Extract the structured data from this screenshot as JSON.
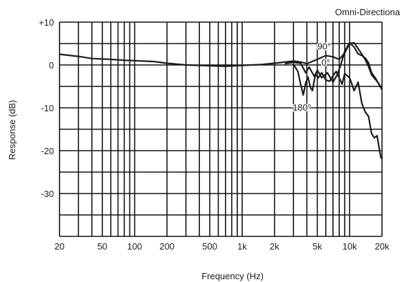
{
  "chart_data": {
    "type": "line",
    "title": "Omni-Directiona",
    "xlabel": "Frequency (Hz)",
    "ylabel": "Response (dB)",
    "x_scale": "log",
    "xlim": [
      20,
      20000
    ],
    "ylim": [
      -40,
      10
    ],
    "grid": true,
    "x_ticks": [
      {
        "value": 20,
        "label": "20"
      },
      {
        "value": 50,
        "label": "50"
      },
      {
        "value": 100,
        "label": "100"
      },
      {
        "value": 200,
        "label": "200"
      },
      {
        "value": 500,
        "label": "500"
      },
      {
        "value": 1000,
        "label": "1k"
      },
      {
        "value": 2000,
        "label": "2k"
      },
      {
        "value": 5000,
        "label": "5k"
      },
      {
        "value": 10000,
        "label": "10k"
      },
      {
        "value": 20000,
        "label": "20k"
      }
    ],
    "y_ticks": [
      {
        "value": 10,
        "label": "+10"
      },
      {
        "value": 0,
        "label": "0"
      },
      {
        "value": -10,
        "label": "-10"
      },
      {
        "value": -20,
        "label": "-20"
      },
      {
        "value": -30,
        "label": "-30"
      }
    ],
    "series": [
      {
        "name": "90°",
        "label_at": [
          5800,
          4.3
        ],
        "points": [
          [
            20,
            2.5
          ],
          [
            30,
            2
          ],
          [
            40,
            1.5
          ],
          [
            60,
            1.3
          ],
          [
            80,
            1.1
          ],
          [
            100,
            1
          ],
          [
            150,
            0.8
          ],
          [
            200,
            0.4
          ],
          [
            300,
            0
          ],
          [
            500,
            -0.2
          ],
          [
            700,
            -0.3
          ],
          [
            1000,
            -0.1
          ],
          [
            1500,
            0.1
          ],
          [
            2000,
            0.4
          ],
          [
            3000,
            0.9
          ],
          [
            3500,
            0.7
          ],
          [
            4000,
            0.3
          ],
          [
            5000,
            1.3
          ],
          [
            6000,
            2.2
          ],
          [
            7000,
            1.9
          ],
          [
            8000,
            1.3
          ],
          [
            9000,
            2.8
          ],
          [
            10000,
            5
          ],
          [
            11000,
            5.2
          ],
          [
            12000,
            3.8
          ],
          [
            13000,
            2.5
          ],
          [
            14000,
            1.2
          ],
          [
            15000,
            -0.4
          ],
          [
            16000,
            -2.3
          ],
          [
            18000,
            -3.8
          ],
          [
            20000,
            -5.5
          ]
        ]
      },
      {
        "name": "0°",
        "label_at": [
          6000,
          0.5
        ],
        "points": [
          [
            2500,
            0.3
          ],
          [
            3000,
            0.6
          ],
          [
            3500,
            0.4
          ],
          [
            3900,
            -1.8
          ],
          [
            4200,
            -0.5
          ],
          [
            4700,
            -2.7
          ],
          [
            5000,
            -1.2
          ],
          [
            5500,
            -3
          ],
          [
            6200,
            -1.8
          ],
          [
            7000,
            -4
          ],
          [
            7700,
            -2.2
          ],
          [
            8300,
            0.2
          ],
          [
            9000,
            3.2
          ],
          [
            10000,
            5.2
          ],
          [
            11000,
            4.2
          ],
          [
            12000,
            2.6
          ],
          [
            13000,
            2.2
          ],
          [
            14000,
            1.6
          ],
          [
            15000,
            0.5
          ],
          [
            16000,
            -1.8
          ],
          [
            17500,
            -3.2
          ],
          [
            20000,
            -5.8
          ]
        ]
      },
      {
        "name": "180°",
        "label_at": [
          3600,
          -10
        ],
        "points": [
          [
            3000,
            0.2
          ],
          [
            3300,
            -1.5
          ],
          [
            3500,
            -4.5
          ],
          [
            3700,
            -7
          ],
          [
            3900,
            -4.2
          ],
          [
            4100,
            -2.8
          ],
          [
            4300,
            -5.2
          ],
          [
            4500,
            -6
          ],
          [
            4800,
            -2.2
          ],
          [
            5100,
            -3
          ],
          [
            5500,
            -1.8
          ],
          [
            6000,
            -3.5
          ],
          [
            6500,
            -3.8
          ],
          [
            7000,
            -2.5
          ],
          [
            7500,
            -1.5
          ],
          [
            8000,
            -3
          ],
          [
            8500,
            -4.5
          ],
          [
            9000,
            -2
          ],
          [
            10000,
            -3
          ],
          [
            11000,
            -6
          ],
          [
            12000,
            -4
          ],
          [
            13000,
            -9
          ],
          [
            14000,
            -11
          ],
          [
            15000,
            -12
          ],
          [
            16000,
            -16
          ],
          [
            17000,
            -17
          ],
          [
            18000,
            -16.5
          ],
          [
            19000,
            -20
          ],
          [
            19500,
            -21.5
          ],
          [
            20000,
            -22
          ]
        ]
      }
    ]
  }
}
